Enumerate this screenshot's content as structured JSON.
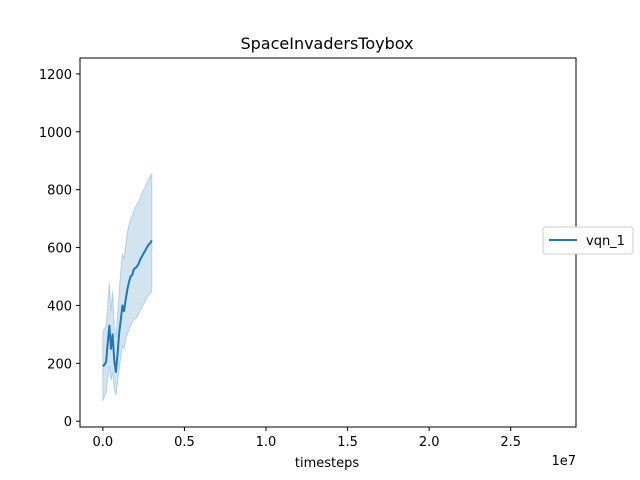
{
  "chart_data": {
    "type": "line",
    "title": "SpaceInvadersToybox",
    "xlabel": "timesteps",
    "ylabel": "",
    "x_offset_label": "1e7",
    "xlim": [
      -1.4,
      29.0
    ],
    "ylim": [
      -20,
      1255
    ],
    "x_ticks": [
      0.0,
      0.5,
      1.0,
      1.5,
      2.0,
      2.5
    ],
    "x_tick_labels": [
      "0.0",
      "0.5",
      "1.0",
      "1.5",
      "2.0",
      "2.5"
    ],
    "y_ticks": [
      0,
      200,
      400,
      600,
      800,
      1000,
      1200
    ],
    "y_tick_labels": [
      "0",
      "200",
      "400",
      "600",
      "800",
      "1000",
      "1200"
    ],
    "legend_position": "center-right",
    "series": [
      {
        "name": "vqn_1",
        "color": "#1f77b4",
        "band_color": "#1f77b4",
        "x": [
          0.0,
          0.1,
          0.2,
          0.3,
          0.4,
          0.5,
          0.6,
          0.7,
          0.8,
          0.9,
          1.0,
          1.1,
          1.2,
          1.3,
          1.4,
          1.5,
          1.6,
          1.7,
          1.8,
          1.9,
          2.0,
          2.1,
          2.2,
          2.3,
          2.4,
          2.5,
          2.6,
          2.7,
          2.8,
          2.9,
          3.0
        ],
        "y": [
          190,
          195,
          205,
          270,
          330,
          250,
          300,
          210,
          170,
          230,
          305,
          350,
          400,
          380,
          420,
          455,
          480,
          500,
          505,
          525,
          530,
          535,
          545,
          560,
          570,
          580,
          590,
          600,
          610,
          615,
          625
        ],
        "y_low": [
          70,
          85,
          95,
          150,
          190,
          140,
          170,
          110,
          90,
          130,
          180,
          220,
          260,
          250,
          280,
          300,
          315,
          330,
          340,
          350,
          355,
          360,
          370,
          385,
          395,
          405,
          415,
          425,
          435,
          440,
          450
        ],
        "y_high": [
          310,
          320,
          330,
          400,
          480,
          380,
          450,
          330,
          290,
          360,
          450,
          520,
          580,
          560,
          610,
          650,
          680,
          700,
          710,
          730,
          740,
          750,
          760,
          775,
          790,
          800,
          810,
          825,
          835,
          845,
          855
        ]
      }
    ]
  }
}
